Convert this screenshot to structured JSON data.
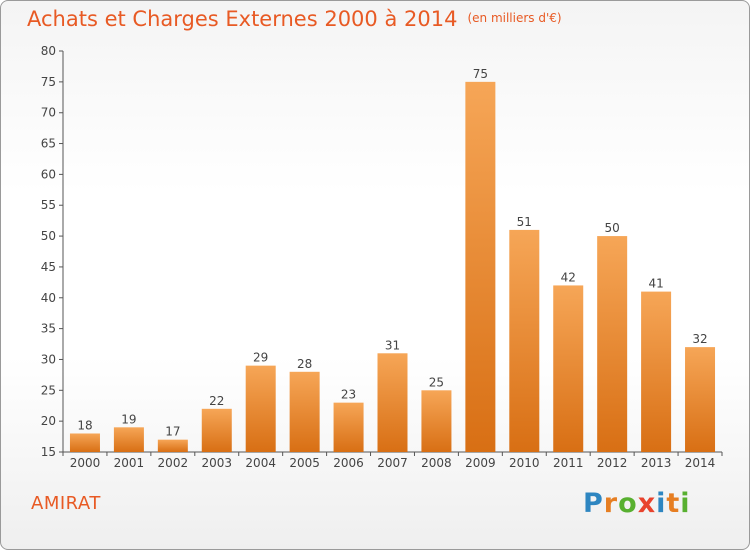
{
  "header": {
    "title": "Achats et Charges Externes 2000 à 2014",
    "subtitle": "(en milliers d'€)"
  },
  "footer": {
    "commune": "AMIRAT",
    "logo_text": "Proxiti",
    "logo_colors": [
      "#2e86c1",
      "#e67e22",
      "#58b030",
      "#e8432d",
      "#2e86c1",
      "#e67e22",
      "#58b030"
    ]
  },
  "colors": {
    "accent": "#e85a24",
    "bar_top": "#f6a657",
    "bar_bottom": "#d86f14"
  },
  "chart_data": {
    "type": "bar",
    "title": "Achats et Charges Externes 2000 à 2014",
    "subtitle": "(en milliers d'€)",
    "categories": [
      "2000",
      "2001",
      "2002",
      "2003",
      "2004",
      "2005",
      "2006",
      "2007",
      "2008",
      "2009",
      "2010",
      "2011",
      "2012",
      "2013",
      "2014"
    ],
    "values": [
      18,
      19,
      17,
      22,
      29,
      28,
      23,
      31,
      25,
      75,
      51,
      42,
      50,
      41,
      32
    ],
    "xlabel": "",
    "ylabel": "",
    "ylim": [
      15,
      80
    ],
    "yticks": [
      15,
      20,
      25,
      30,
      35,
      40,
      45,
      50,
      55,
      60,
      65,
      70,
      75,
      80
    ],
    "grid": false,
    "data_labels": true
  }
}
